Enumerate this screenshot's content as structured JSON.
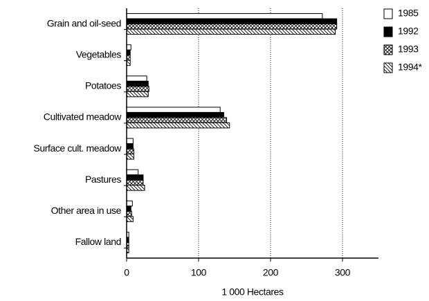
{
  "chart_data": {
    "type": "hbar",
    "categories": [
      "Grain and oil-seed",
      "Vegetables",
      "Potatoes",
      "Cultivated meadow",
      "Surface cult. meadow",
      "Pastures",
      "Other area in use",
      "Fallow land"
    ],
    "series": [
      {
        "name": "1985",
        "color": "#000000",
        "pattern": "open",
        "values": [
          272,
          6,
          28,
          130,
          9,
          16,
          8,
          3
        ]
      },
      {
        "name": "1992",
        "color": "#000000",
        "pattern": "solid",
        "values": [
          292,
          5,
          30,
          135,
          9,
          23,
          6,
          3
        ]
      },
      {
        "name": "1993",
        "color": "#000000",
        "pattern": "crosshatch",
        "values": [
          292,
          5,
          31,
          139,
          10,
          23,
          7,
          3
        ]
      },
      {
        "name": "1994*",
        "color": "#000000",
        "pattern": "diagonal",
        "values": [
          290,
          5,
          30,
          143,
          10,
          25,
          9,
          3
        ]
      }
    ],
    "xlabel": "1 000 Hectares",
    "xlim": [
      0,
      350
    ],
    "xticks": [
      0,
      100,
      200,
      300
    ],
    "grid": true,
    "legend": "top-right"
  }
}
